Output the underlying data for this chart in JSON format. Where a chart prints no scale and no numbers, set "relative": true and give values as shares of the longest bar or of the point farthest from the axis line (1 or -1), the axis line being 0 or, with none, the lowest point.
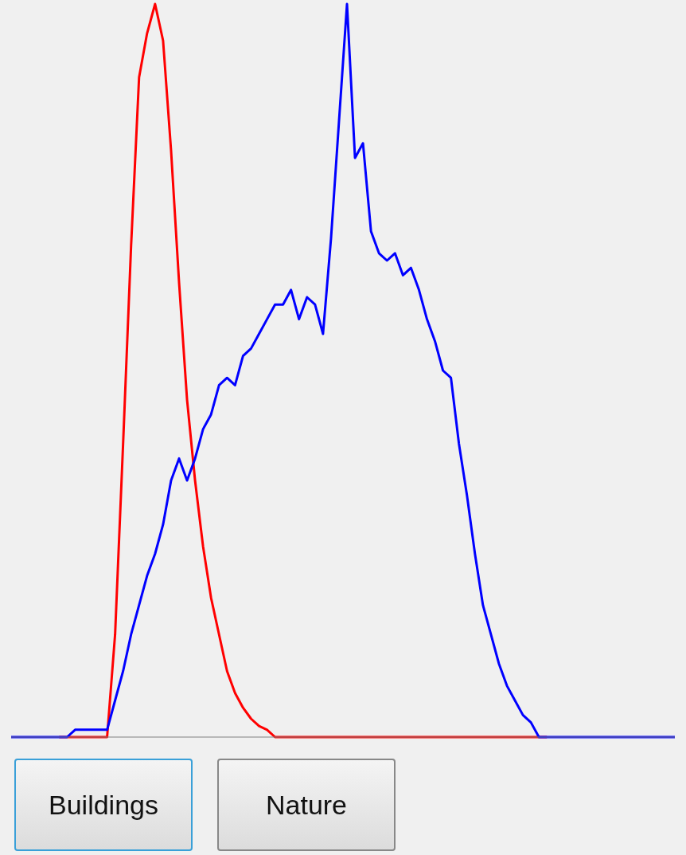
{
  "chart_data": {
    "type": "line",
    "relative": true,
    "categories": [
      null,
      null,
      null,
      null,
      null,
      null,
      null,
      null,
      null,
      null,
      null,
      null,
      null,
      null,
      null,
      null,
      null,
      null,
      null,
      null,
      null,
      null,
      null,
      null,
      null,
      null,
      null,
      null,
      null,
      null,
      null,
      null,
      null,
      null,
      null,
      null,
      null,
      null,
      null,
      null,
      null,
      null,
      null,
      null,
      null,
      null,
      null,
      null,
      null,
      null,
      null,
      null,
      null,
      null,
      null,
      null,
      null,
      null,
      null,
      null,
      null,
      null,
      null,
      null,
      null,
      null,
      null,
      null,
      null,
      null,
      null,
      null,
      null,
      null,
      null,
      null,
      null,
      null,
      null,
      null,
      null,
      null,
      null,
      null
    ],
    "series": [
      {
        "color": "#ff0000",
        "values": [
          null,
          null,
          null,
          null,
          null,
          null,
          0,
          0,
          0,
          0,
          0,
          0,
          0,
          0.14,
          0.4,
          0.67,
          0.9,
          0.96,
          1,
          0.95,
          0.8,
          0.62,
          0.46,
          0.35,
          0.26,
          0.19,
          0.14,
          0.09,
          0.06,
          0.04,
          0.025,
          0.015,
          0.01,
          0,
          0,
          0,
          0,
          0,
          0,
          0,
          0,
          0,
          0,
          0,
          0,
          0,
          0,
          0,
          0,
          0,
          0,
          0,
          0,
          0,
          0,
          0,
          0,
          0,
          0,
          0,
          0,
          0,
          0,
          0,
          0,
          0,
          0,
          0,
          null,
          null,
          null,
          null,
          null,
          null,
          null,
          null,
          null,
          null,
          null,
          null,
          null,
          null,
          null,
          null
        ]
      },
      {
        "color": "#0000ff",
        "values": [
          0,
          0,
          0,
          0,
          0,
          0,
          0,
          0,
          0.01,
          0.01,
          0.01,
          0.01,
          0.01,
          0.05,
          0.09,
          0.14,
          0.18,
          0.22,
          0.25,
          0.29,
          0.35,
          0.38,
          0.35,
          0.38,
          0.42,
          0.44,
          0.48,
          0.49,
          0.48,
          0.52,
          0.53,
          0.55,
          0.57,
          0.59,
          0.59,
          0.61,
          0.57,
          0.6,
          0.59,
          0.55,
          0.68,
          0.84,
          1,
          0.79,
          0.81,
          0.69,
          0.66,
          0.65,
          0.66,
          0.63,
          0.64,
          0.61,
          0.57,
          0.54,
          0.5,
          0.49,
          0.4,
          0.33,
          0.25,
          0.18,
          0.14,
          0.1,
          0.07,
          0.05,
          0.03,
          0.02,
          0,
          0,
          0,
          0,
          0,
          0,
          0,
          0,
          0,
          0,
          0,
          0,
          0,
          0,
          0,
          0,
          0,
          0
        ]
      }
    ],
    "annotations": [
      "Buildings",
      "Nature"
    ]
  }
}
